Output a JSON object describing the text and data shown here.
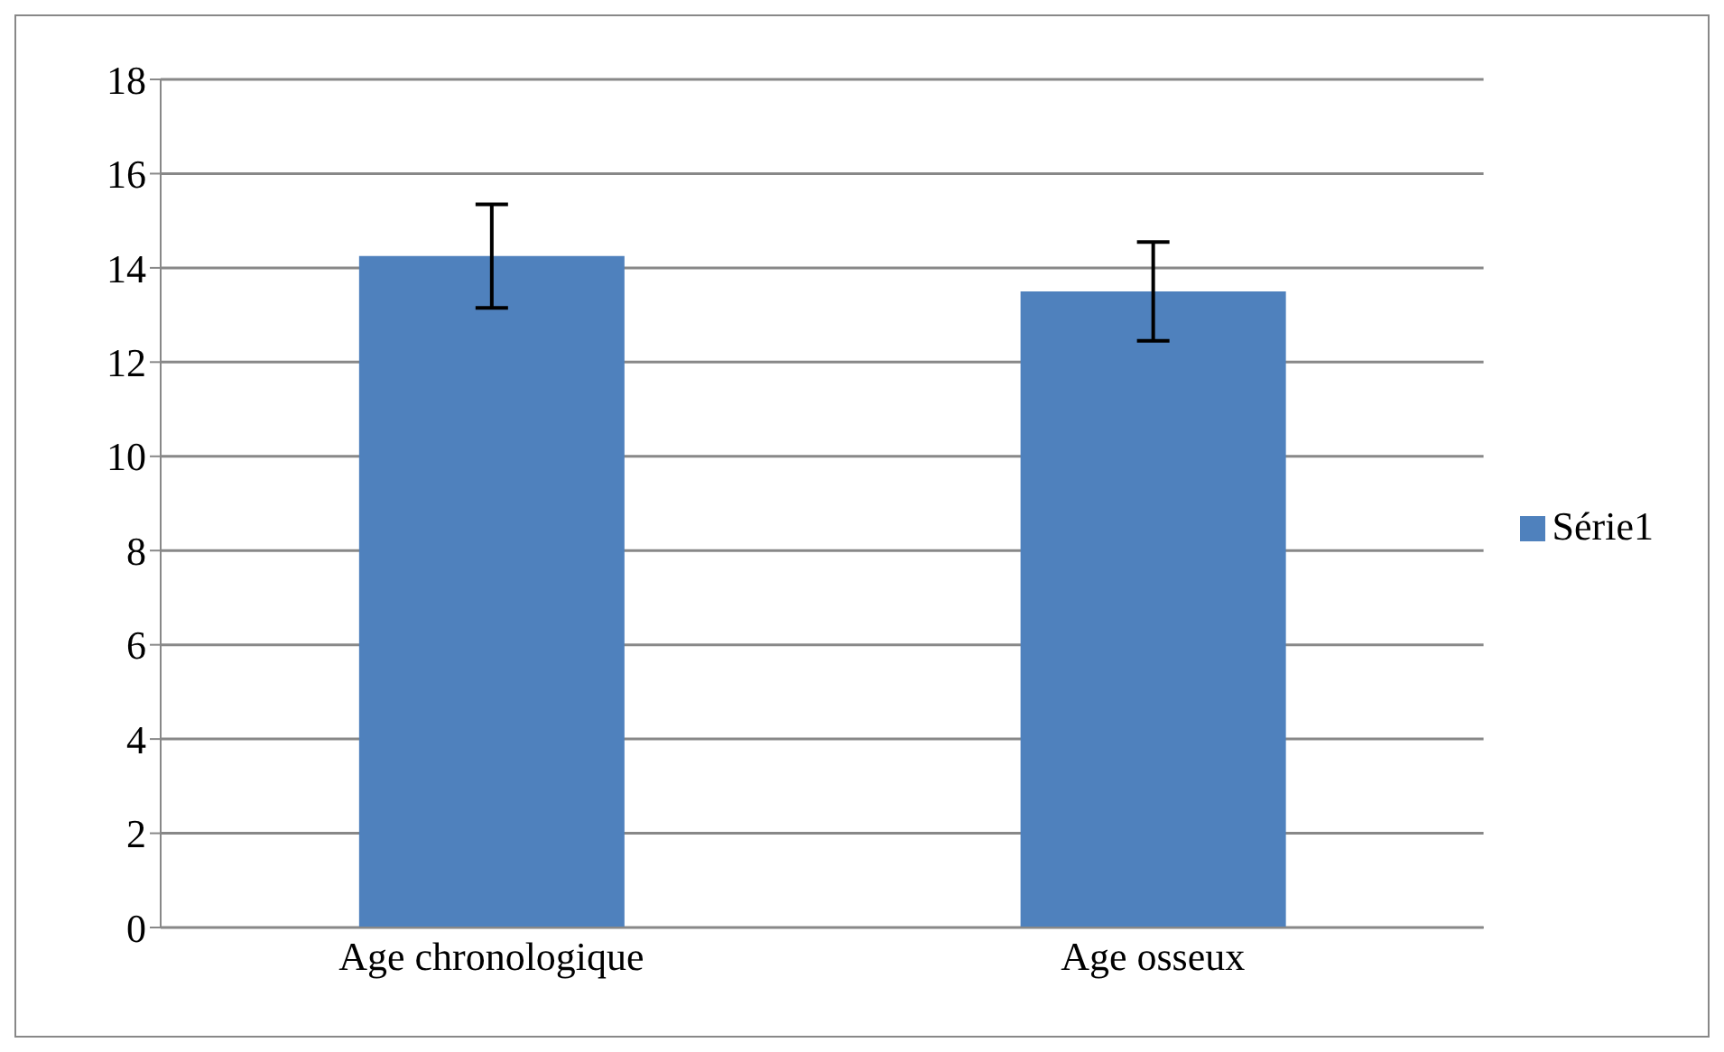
{
  "chart_data": {
    "type": "bar",
    "categories": [
      "Age chronologique",
      "Age osseux"
    ],
    "series": [
      {
        "name": "Série1",
        "color": "#4f81bd",
        "values": [
          14.25,
          13.5
        ],
        "errors": [
          1.1,
          1.05
        ]
      }
    ],
    "ylim": [
      0,
      18
    ],
    "yticks": [
      0,
      2,
      4,
      6,
      8,
      10,
      12,
      14,
      16,
      18
    ],
    "grid": "y",
    "legend": "right"
  }
}
